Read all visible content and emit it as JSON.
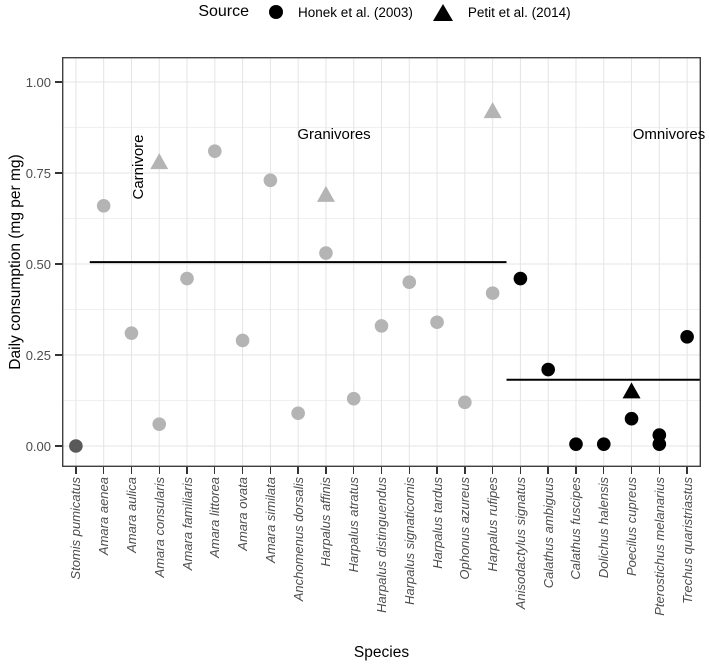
{
  "legend": {
    "title": "Source",
    "items": [
      {
        "marker": "circle",
        "label": "Honek et al. (2003)"
      },
      {
        "marker": "triangle",
        "label": "Petit et al. (2014)"
      }
    ]
  },
  "axes": {
    "x_title": "Species",
    "y_title": "Daily consumption (mg per mg)",
    "y_ticks": [
      {
        "value": 0,
        "label": "0.00"
      },
      {
        "value": 0.25,
        "label": "0.25"
      },
      {
        "value": 0.5,
        "label": "0.50"
      },
      {
        "value": 0.75,
        "label": "0.75"
      },
      {
        "value": 1,
        "label": "1.00"
      }
    ],
    "y_minor_ticks": [
      0.125,
      0.375,
      0.625,
      0.875
    ]
  },
  "facet_labels": {
    "carnivore": "Carnivore",
    "granivores": "Granivores",
    "omnivores": "Omnivores"
  },
  "chart_data": {
    "type": "scatter",
    "title": "",
    "xlabel": "Species",
    "ylabel": "Daily consumption (mg per mg)",
    "ylim": [
      0,
      1.0
    ],
    "grid": "on",
    "legend_position": "top",
    "point_colors": {
      "Carnivore": "#595959",
      "Granivores": "#b4b4b4",
      "Omnivores": "#000000"
    },
    "marker_sources": {
      "circle": "Honek et al. (2003)",
      "triangle": "Petit et al. (2014)"
    },
    "species": [
      {
        "name": "Stomis pumicatus",
        "group": "Carnivore",
        "points": [
          {
            "marker": "circle",
            "value": 0.0
          }
        ]
      },
      {
        "name": "Amara aenea",
        "group": "Granivores",
        "points": [
          {
            "marker": "circle",
            "value": 0.66
          }
        ]
      },
      {
        "name": "Amara aulica",
        "group": "Granivores",
        "points": [
          {
            "marker": "circle",
            "value": 0.31
          }
        ]
      },
      {
        "name": "Amara consularis",
        "group": "Granivores",
        "points": [
          {
            "marker": "triangle",
            "value": 0.78
          },
          {
            "marker": "circle",
            "value": 0.06
          }
        ]
      },
      {
        "name": "Amara familiaris",
        "group": "Granivores",
        "points": [
          {
            "marker": "circle",
            "value": 0.46
          }
        ]
      },
      {
        "name": "Amara littorea",
        "group": "Granivores",
        "points": [
          {
            "marker": "circle",
            "value": 0.81
          }
        ]
      },
      {
        "name": "Amara ovata",
        "group": "Granivores",
        "points": [
          {
            "marker": "circle",
            "value": 0.29
          }
        ]
      },
      {
        "name": "Amara similata",
        "group": "Granivores",
        "points": [
          {
            "marker": "circle",
            "value": 0.73
          }
        ]
      },
      {
        "name": "Anchomenus dorsalis",
        "group": "Granivores",
        "points": [
          {
            "marker": "circle",
            "value": 0.09
          }
        ]
      },
      {
        "name": "Harpalus affinis",
        "group": "Granivores",
        "points": [
          {
            "marker": "triangle",
            "value": 0.69
          },
          {
            "marker": "circle",
            "value": 0.53
          }
        ]
      },
      {
        "name": "Harpalus atratus",
        "group": "Granivores",
        "points": [
          {
            "marker": "circle",
            "value": 0.13
          }
        ]
      },
      {
        "name": "Harpalus distinguendus",
        "group": "Granivores",
        "points": [
          {
            "marker": "circle",
            "value": 0.33
          }
        ]
      },
      {
        "name": "Harpalus signaticornis",
        "group": "Granivores",
        "points": [
          {
            "marker": "circle",
            "value": 0.45
          }
        ]
      },
      {
        "name": "Harpalus tardus",
        "group": "Granivores",
        "points": [
          {
            "marker": "circle",
            "value": 0.34
          }
        ]
      },
      {
        "name": "Ophonus azureus",
        "group": "Granivores",
        "points": [
          {
            "marker": "circle",
            "value": 0.12
          }
        ]
      },
      {
        "name": "Harpalus rufipes",
        "group": "Granivores",
        "points": [
          {
            "marker": "triangle",
            "value": 0.92
          },
          {
            "marker": "circle",
            "value": 0.42
          }
        ]
      },
      {
        "name": "Anisodactylus signatus",
        "group": "Omnivores",
        "points": [
          {
            "marker": "circle",
            "value": 0.46
          }
        ]
      },
      {
        "name": "Calathus ambiguus",
        "group": "Omnivores",
        "points": [
          {
            "marker": "circle",
            "value": 0.21
          }
        ]
      },
      {
        "name": "Calathus fuscipes",
        "group": "Omnivores",
        "points": [
          {
            "marker": "circle",
            "value": 0.005
          }
        ]
      },
      {
        "name": "Dolichus halensis",
        "group": "Omnivores",
        "points": [
          {
            "marker": "circle",
            "value": 0.005
          }
        ]
      },
      {
        "name": "Poecilus cupreus",
        "group": "Omnivores",
        "points": [
          {
            "marker": "triangle",
            "value": 0.15
          },
          {
            "marker": "circle",
            "value": 0.075
          }
        ]
      },
      {
        "name": "Pterostichus melanarius",
        "group": "Omnivores",
        "points": [
          {
            "marker": "circle",
            "value": 0.03
          },
          {
            "marker": "circle",
            "value": 0.005
          }
        ]
      },
      {
        "name": "Trechus quaristriastus",
        "group": "Omnivores",
        "points": [
          {
            "marker": "circle",
            "value": 0.3
          }
        ]
      }
    ],
    "mean_lines": [
      {
        "group": "Granivores",
        "value": 0.505,
        "species_index_span": [
          1,
          15
        ]
      },
      {
        "group": "Omnivores",
        "value": 0.182,
        "species_index_span": [
          16,
          22
        ]
      }
    ]
  }
}
